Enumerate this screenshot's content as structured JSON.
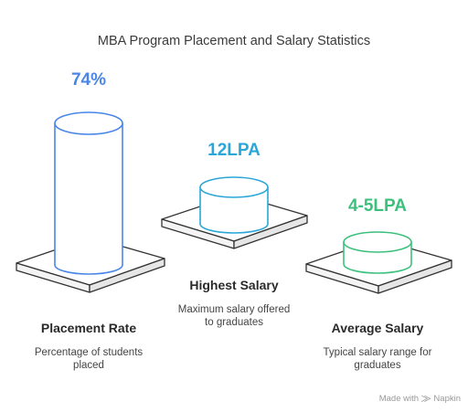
{
  "title": "MBA Program Placement and Salary Statistics",
  "items": [
    {
      "value": "74%",
      "label": "Placement Rate",
      "description_line1": "Percentage of students",
      "description_line2": "placed",
      "color": "#4a86e8"
    },
    {
      "value": "12LPA",
      "label": "Highest Salary",
      "description_line1": "Maximum salary offered",
      "description_line2": "to graduates",
      "color": "#2aa7d8"
    },
    {
      "value": "4-5LPA",
      "label": "Average Salary",
      "description_line1": "Typical salary range for",
      "description_line2": "graduates",
      "color": "#3cc17c"
    }
  ],
  "branding": {
    "prefix": "Made with",
    "name": "Napkin"
  }
}
